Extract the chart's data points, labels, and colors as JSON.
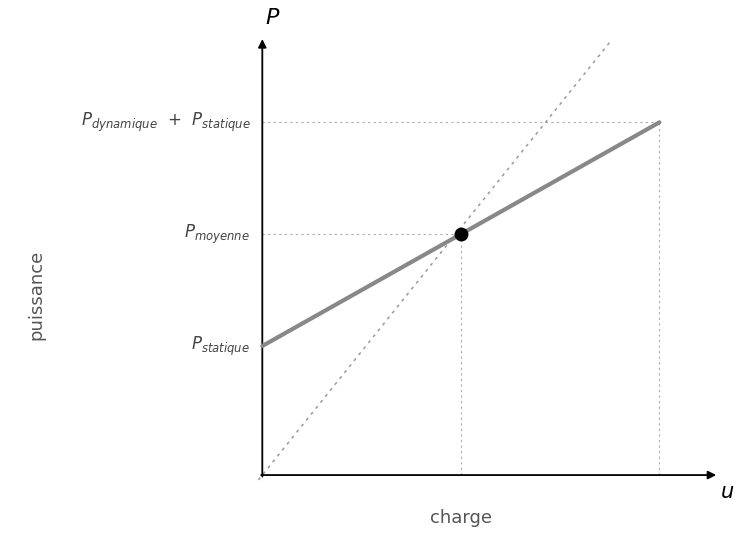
{
  "background_color": "#ffffff",
  "gray_line_color": "#888888",
  "dotted_line_color": "#999999",
  "ref_line_color": "#aaaaaa",
  "dot_color": "#000000",
  "p_statique": 0.3,
  "p_dynamique_plus_statique": 0.82,
  "p_moyenne": 0.56,
  "u_moyenne": 0.5,
  "u_max": 1.0,
  "figsize": [
    7.51,
    5.33
  ],
  "dpi": 100
}
